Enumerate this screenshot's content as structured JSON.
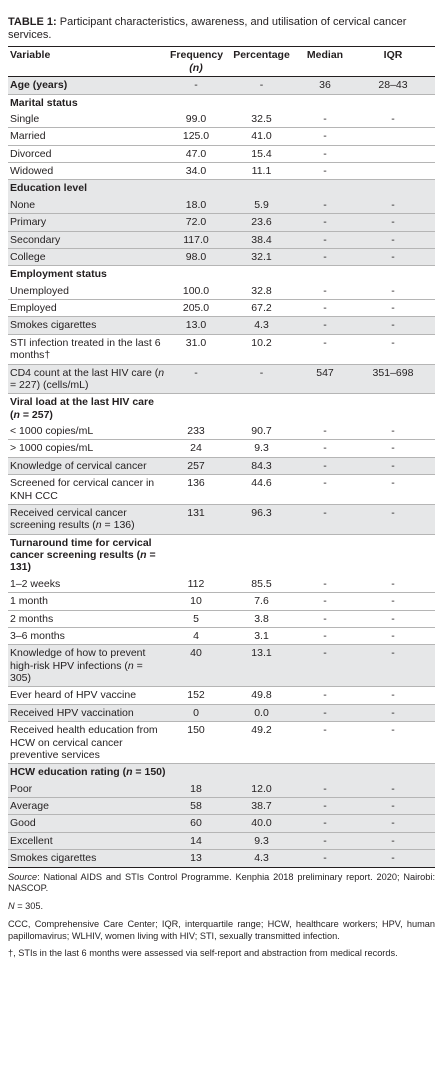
{
  "caption": {
    "label": "TABLE 1:",
    "text": " Participant characteristics, awareness, and utilisation of cervical cancer services."
  },
  "columns": {
    "variable": "Variable",
    "frequency": "Frequency",
    "frequency_sub": "(n)",
    "percentage": "Percentage",
    "median": "Median",
    "iqr": "IQR"
  },
  "rows": [
    {
      "cells": [
        "Age (years)",
        "-",
        "-",
        "36",
        "28–43"
      ],
      "type": "data",
      "shade": true,
      "sep": true,
      "bold": true
    },
    {
      "cells": [
        "Marital status",
        "",
        "",
        "",
        ""
      ],
      "type": "header",
      "shade": false,
      "sep": false
    },
    {
      "cells": [
        "Single",
        "99.0",
        "32.5",
        "-",
        "-"
      ],
      "type": "data",
      "shade": false,
      "sep": true
    },
    {
      "cells": [
        "Married",
        "125.0",
        "41.0",
        "-",
        ""
      ],
      "type": "data",
      "shade": false,
      "sep": true
    },
    {
      "cells": [
        "Divorced",
        "47.0",
        "15.4",
        "-",
        ""
      ],
      "type": "data",
      "shade": false,
      "sep": true
    },
    {
      "cells": [
        "Widowed",
        "34.0",
        "11.1",
        "-",
        ""
      ],
      "type": "data",
      "shade": false,
      "sep": true
    },
    {
      "cells": [
        "Education level",
        "",
        "",
        "",
        ""
      ],
      "type": "header",
      "shade": true,
      "sep": false
    },
    {
      "cells": [
        "None",
        "18.0",
        "5.9",
        "-",
        "-"
      ],
      "type": "data",
      "shade": true,
      "sep": true
    },
    {
      "cells": [
        "Primary",
        "72.0",
        "23.6",
        "-",
        "-"
      ],
      "type": "data",
      "shade": true,
      "sep": true
    },
    {
      "cells": [
        "Secondary",
        "117.0",
        "38.4",
        "-",
        "-"
      ],
      "type": "data",
      "shade": true,
      "sep": true
    },
    {
      "cells": [
        "College",
        "98.0",
        "32.1",
        "-",
        "-"
      ],
      "type": "data",
      "shade": true,
      "sep": true
    },
    {
      "cells": [
        "Employment status",
        "",
        "",
        "",
        ""
      ],
      "type": "header",
      "shade": false,
      "sep": false
    },
    {
      "cells": [
        "Unemployed",
        "100.0",
        "32.8",
        "-",
        "-"
      ],
      "type": "data",
      "shade": false,
      "sep": true
    },
    {
      "cells": [
        "Employed",
        "205.0",
        "67.2",
        "-",
        "-"
      ],
      "type": "data",
      "shade": false,
      "sep": true
    },
    {
      "cells": [
        "Smokes cigarettes",
        "13.0",
        "4.3",
        "-",
        "-"
      ],
      "type": "data",
      "shade": true,
      "sep": true
    },
    {
      "cells": [
        "STI infection treated in the last 6 months†",
        "31.0",
        "10.2",
        "-",
        "-"
      ],
      "type": "data",
      "shade": false,
      "sep": true
    },
    {
      "cells": [
        "CD4 count at the last HIV care (n = 227) (cells/mL)",
        "-",
        "-",
        "547",
        "351–698"
      ],
      "type": "data",
      "shade": true,
      "sep": true
    },
    {
      "cells": [
        "Viral load at the last HIV care (n = 257)",
        "",
        "",
        "",
        ""
      ],
      "type": "header",
      "shade": false,
      "sep": false
    },
    {
      "cells": [
        "< 1000 copies/mL",
        "233",
        "90.7",
        "-",
        "-"
      ],
      "type": "data",
      "shade": false,
      "sep": true
    },
    {
      "cells": [
        "> 1000 copies/mL",
        "24",
        "9.3",
        "-",
        "-"
      ],
      "type": "data",
      "shade": false,
      "sep": true
    },
    {
      "cells": [
        "Knowledge of cervical cancer",
        "257",
        "84.3",
        "-",
        "-"
      ],
      "type": "data",
      "shade": true,
      "sep": true
    },
    {
      "cells": [
        "Screened for cervical cancer in KNH CCC",
        "136",
        "44.6",
        "-",
        "-"
      ],
      "type": "data",
      "shade": false,
      "sep": true
    },
    {
      "cells": [
        "Received cervical cancer screening results (n = 136)",
        "131",
        "96.3",
        "-",
        "-"
      ],
      "type": "data",
      "shade": true,
      "sep": true
    },
    {
      "cells": [
        "Turnaround time for cervical cancer screening results (n = 131)",
        "",
        "",
        "",
        ""
      ],
      "type": "header",
      "shade": false,
      "sep": false
    },
    {
      "cells": [
        "1–2 weeks",
        "112",
        "85.5",
        "-",
        "-"
      ],
      "type": "data",
      "shade": false,
      "sep": true
    },
    {
      "cells": [
        "1 month",
        "10",
        "7.6",
        "-",
        "-"
      ],
      "type": "data",
      "shade": false,
      "sep": true
    },
    {
      "cells": [
        "2 months",
        "5",
        "3.8",
        "-",
        "-"
      ],
      "type": "data",
      "shade": false,
      "sep": true
    },
    {
      "cells": [
        "3–6 months",
        "4",
        "3.1",
        "-",
        "-"
      ],
      "type": "data",
      "shade": false,
      "sep": true
    },
    {
      "cells": [
        "Knowledge of how to prevent high-risk HPV infections (n = 305)",
        "40",
        "13.1",
        "-",
        "-"
      ],
      "type": "data",
      "shade": true,
      "sep": true
    },
    {
      "cells": [
        "Ever heard of HPV vaccine",
        "152",
        "49.8",
        "-",
        "-"
      ],
      "type": "data",
      "shade": false,
      "sep": true
    },
    {
      "cells": [
        "Received HPV vaccination",
        "0",
        "0.0",
        "-",
        "-"
      ],
      "type": "data",
      "shade": true,
      "sep": true
    },
    {
      "cells": [
        "Received health education from HCW on cervical cancer preventive services",
        "150",
        "49.2",
        "-",
        "-"
      ],
      "type": "data",
      "shade": false,
      "sep": true
    },
    {
      "cells": [
        "HCW education rating (n = 150)",
        "",
        "",
        "",
        ""
      ],
      "type": "header",
      "shade": true,
      "sep": false
    },
    {
      "cells": [
        "Poor",
        "18",
        "12.0",
        "-",
        "-"
      ],
      "type": "data",
      "shade": true,
      "sep": true
    },
    {
      "cells": [
        "Average",
        "58",
        "38.7",
        "-",
        "-"
      ],
      "type": "data",
      "shade": true,
      "sep": true
    },
    {
      "cells": [
        "Good",
        "60",
        "40.0",
        "-",
        "-"
      ],
      "type": "data",
      "shade": true,
      "sep": true
    },
    {
      "cells": [
        "Excellent",
        "14",
        "9.3",
        "-",
        "-"
      ],
      "type": "data",
      "shade": true,
      "sep": true
    },
    {
      "cells": [
        "Smokes cigarettes",
        "13",
        "4.3",
        "-",
        "-"
      ],
      "type": "data",
      "shade": true,
      "sep": true
    }
  ],
  "notes": {
    "source_label": "Source",
    "source_text": ": National AIDS and STIs Control Programme. Kenphia 2018 preliminary report. 2020; Nairobi: NASCOP.",
    "n_total": "N = 305.",
    "abbreviations": "CCC, Comprehensive Care Center; IQR, interquartile range; HCW, healthcare workers; HPV, human papillomavirus; WLHIV, women living with HIV; STI, sexually transmitted infection.",
    "dagger": "†, STIs in the last 6 months were assessed via self-report and abstraction from medical records."
  }
}
